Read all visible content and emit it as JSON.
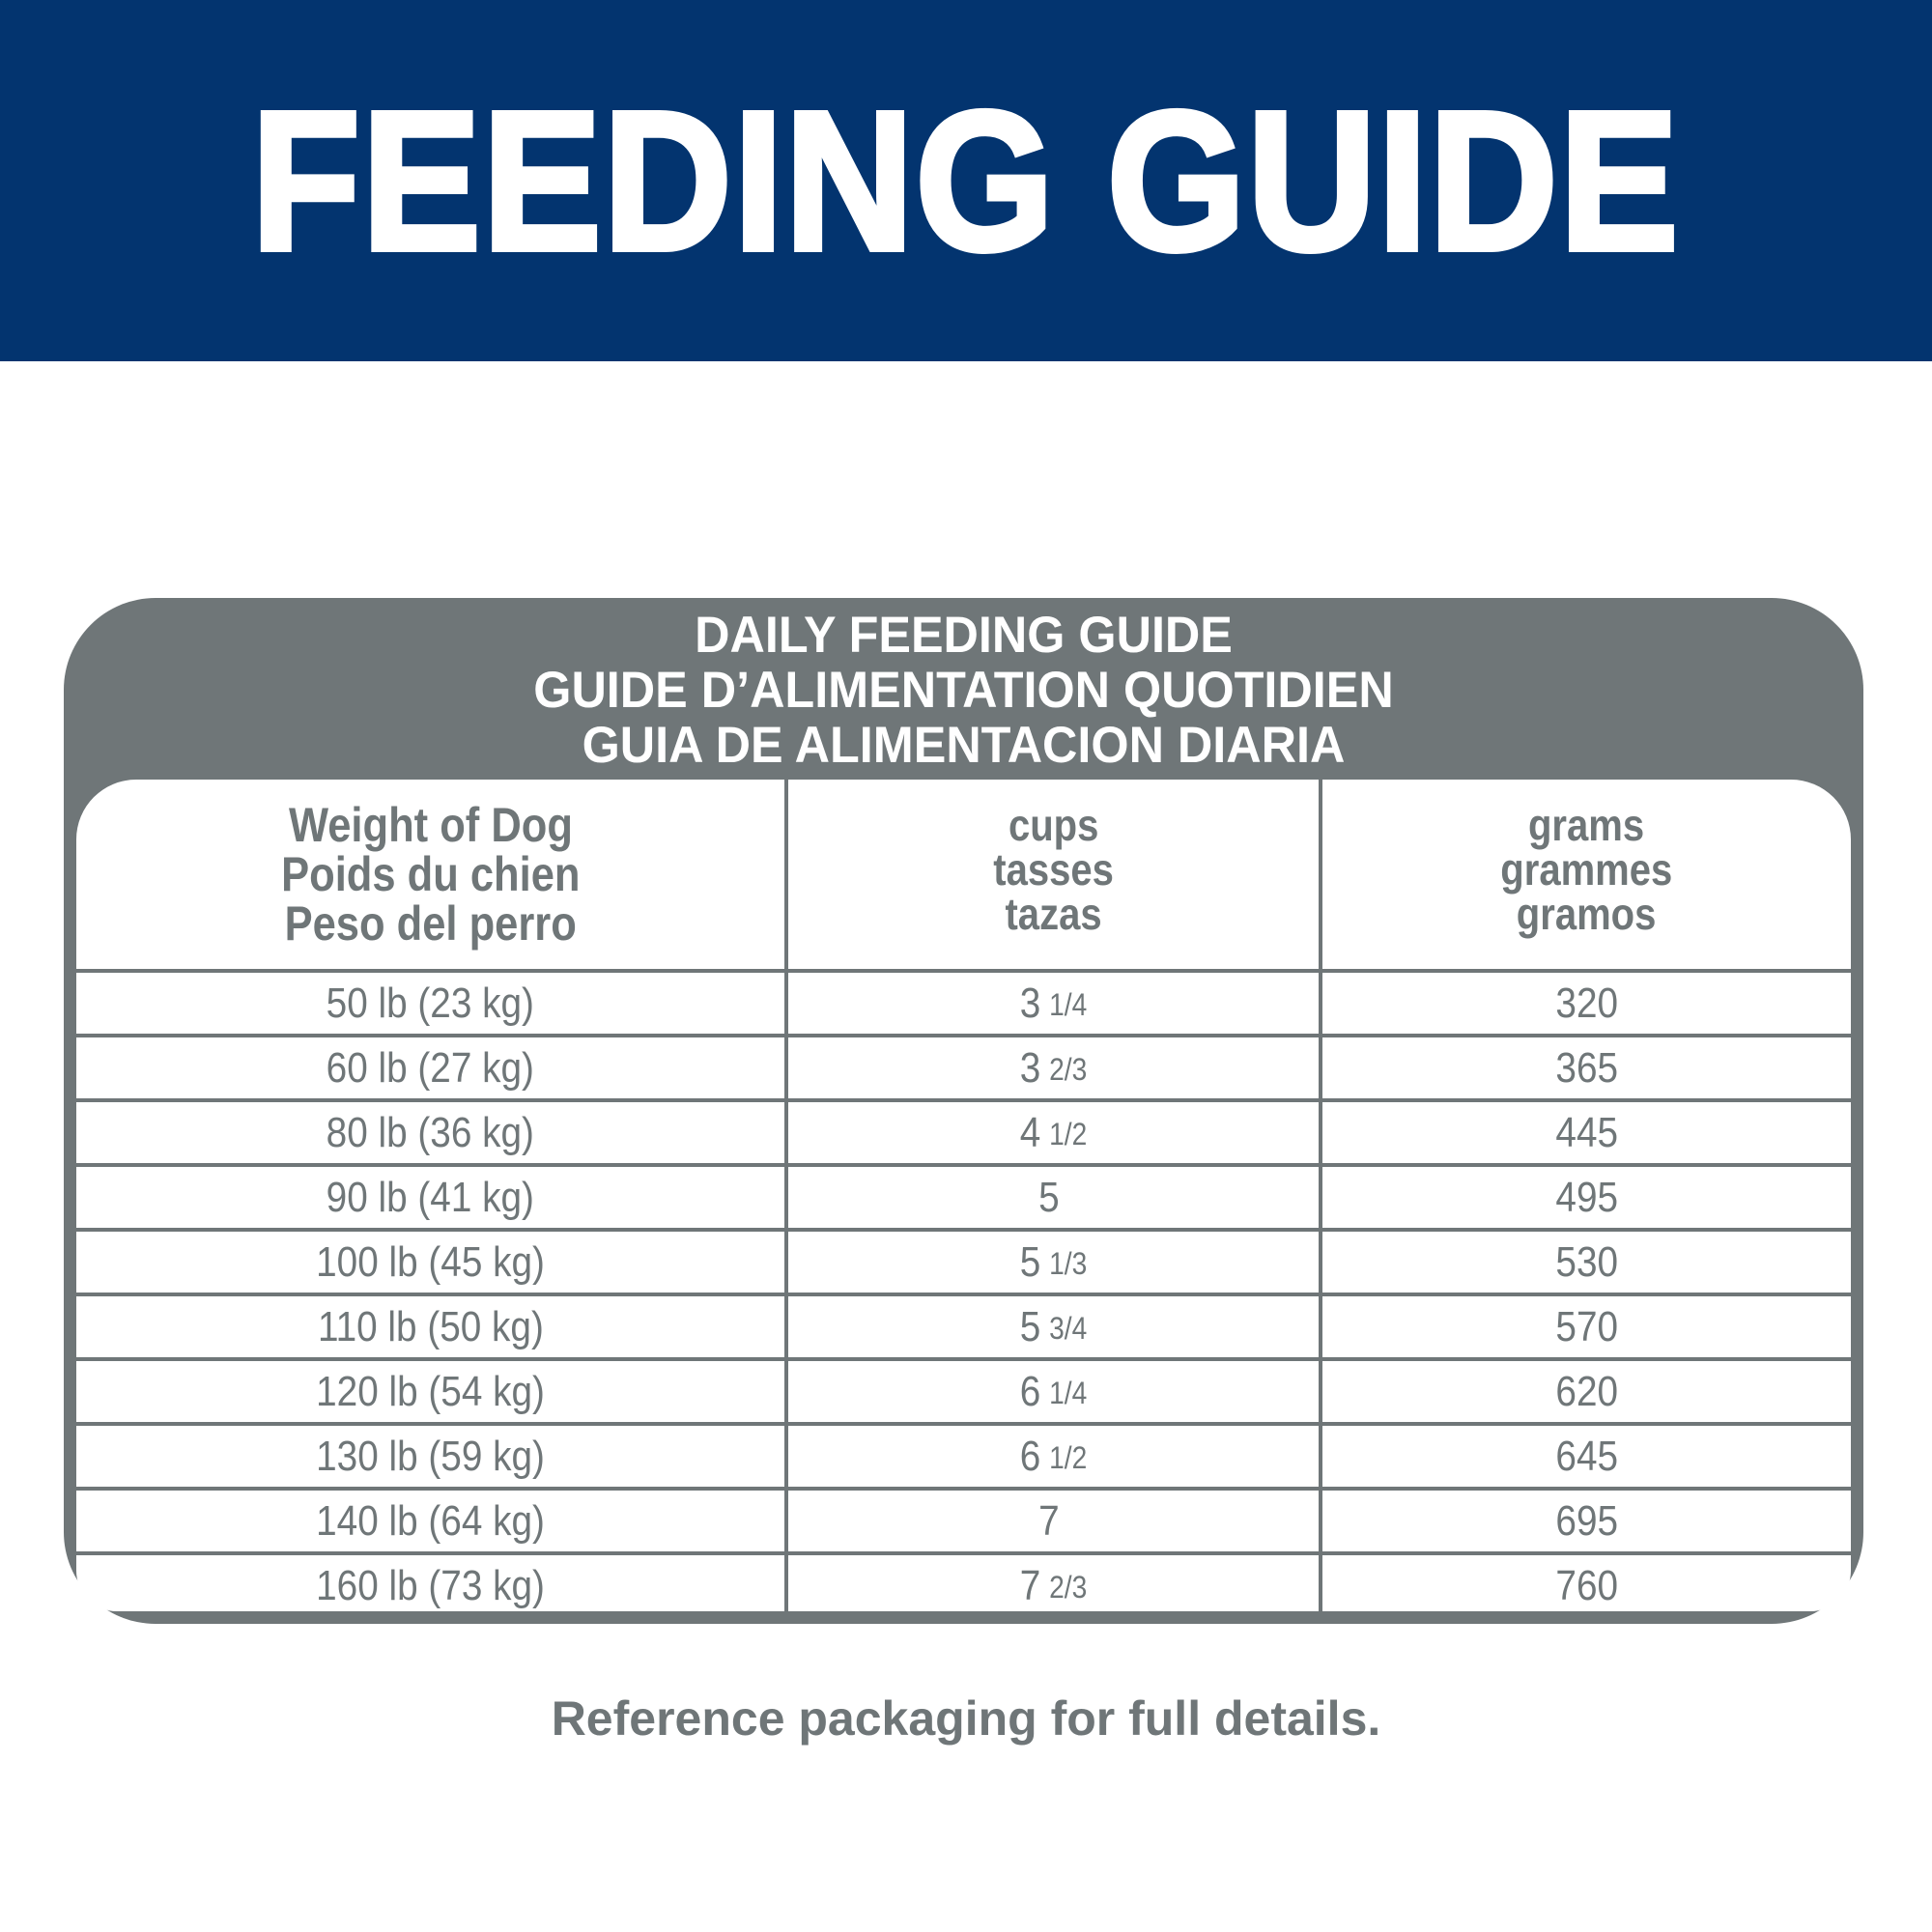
{
  "banner": {
    "title": "FEEDING GUIDE"
  },
  "colors": {
    "banner_blue": "#03346f",
    "table_gray": "#6f7678"
  },
  "table": {
    "title_lines": [
      "DAILY FEEDING GUIDE",
      "GUIDE D’ALIMENTATION QUOTIDIEN",
      "GUIA DE ALIMENTACION DIARIA"
    ],
    "headers": [
      [
        "Weight of Dog",
        "Poids du chien",
        "Peso del perro"
      ],
      [
        "cups",
        "tasses",
        "tazas"
      ],
      [
        "grams",
        "grammes",
        "gramos"
      ]
    ],
    "rows": [
      {
        "weight": "50 lb (23 kg)",
        "cups_whole": "3",
        "cups_frac": "1/4",
        "grams": "320"
      },
      {
        "weight": "60 lb (27 kg)",
        "cups_whole": "3",
        "cups_frac": "2/3",
        "grams": "365"
      },
      {
        "weight": "80 lb (36 kg)",
        "cups_whole": "4",
        "cups_frac": "1/2",
        "grams": "445"
      },
      {
        "weight": "90 lb (41 kg)",
        "cups_whole": "5",
        "cups_frac": "",
        "grams": "495"
      },
      {
        "weight": "100 lb (45 kg)",
        "cups_whole": "5",
        "cups_frac": "1/3",
        "grams": "530"
      },
      {
        "weight": "110 lb (50 kg)",
        "cups_whole": "5",
        "cups_frac": "3/4",
        "grams": "570"
      },
      {
        "weight": "120 lb (54 kg)",
        "cups_whole": "6",
        "cups_frac": "1/4",
        "grams": "620"
      },
      {
        "weight": "130 lb (59 kg)",
        "cups_whole": "6",
        "cups_frac": "1/2",
        "grams": "645"
      },
      {
        "weight": "140 lb (64 kg)",
        "cups_whole": "7",
        "cups_frac": "",
        "grams": "695"
      },
      {
        "weight": "160 lb (73 kg)",
        "cups_whole": "7",
        "cups_frac": "2/3",
        "grams": "760"
      }
    ]
  },
  "footer": {
    "note": "Reference packaging for full details."
  }
}
